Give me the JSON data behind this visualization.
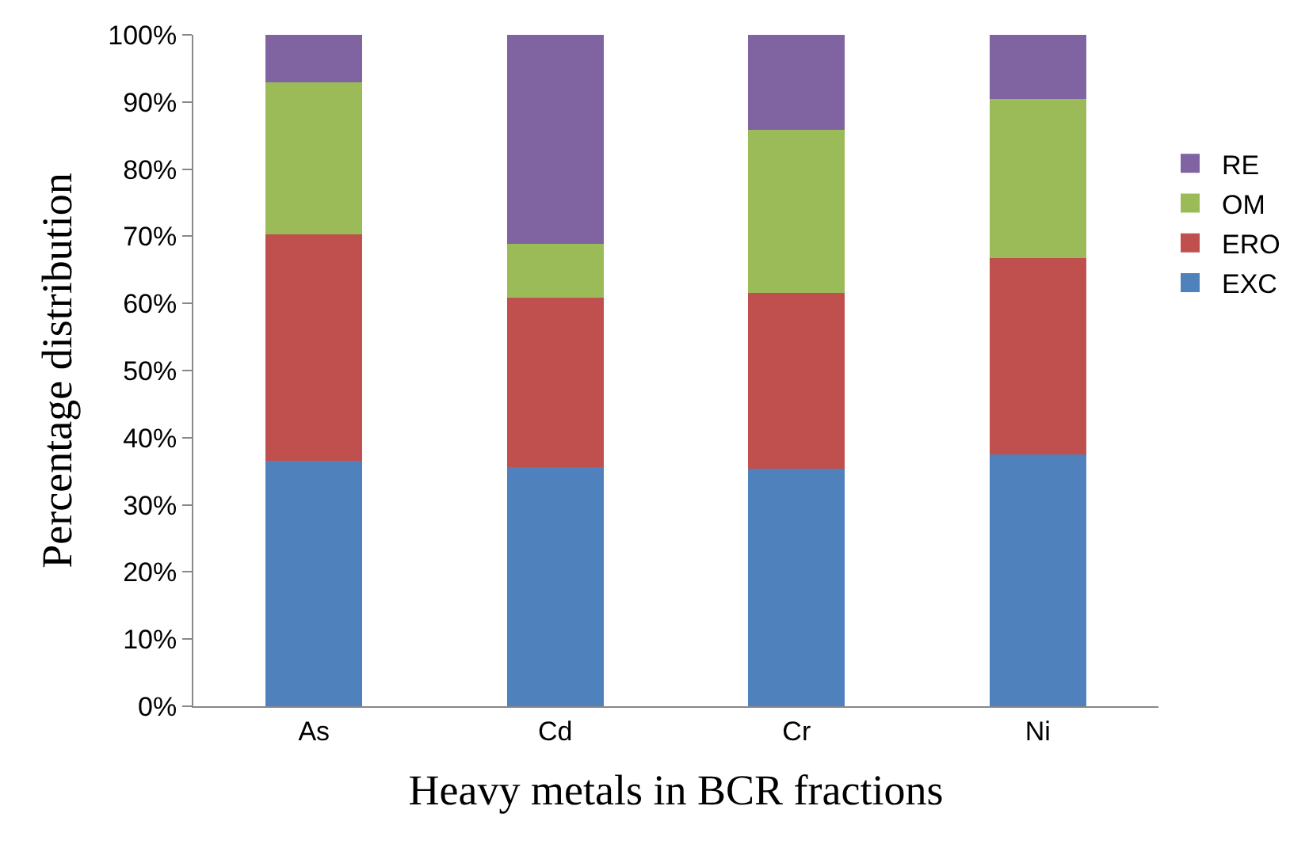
{
  "chart_data": {
    "type": "bar",
    "stacked": true,
    "xlabel": "Heavy metals in BCR fractions",
    "ylabel": "Percentage distribution",
    "categories": [
      "As",
      "Cd",
      "Cr",
      "Ni"
    ],
    "series": [
      {
        "name": "EXC",
        "color": "#4f81bd",
        "values": [
          36.6,
          35.6,
          35.4,
          37.5
        ]
      },
      {
        "name": "ERO",
        "color": "#c0504d",
        "values": [
          33.7,
          25.2,
          26.2,
          29.2
        ]
      },
      {
        "name": "OM",
        "color": "#9bbb59",
        "values": [
          22.6,
          8.1,
          24.2,
          23.8
        ]
      },
      {
        "name": "RE",
        "color": "#8064a2",
        "values": [
          7.1,
          31.1,
          14.2,
          9.5
        ]
      }
    ],
    "ylim": [
      0,
      100
    ],
    "yticks": [
      {
        "value": 0,
        "label": "0%"
      },
      {
        "value": 10,
        "label": "10%"
      },
      {
        "value": 20,
        "label": "20%"
      },
      {
        "value": 30,
        "label": "30%"
      },
      {
        "value": 40,
        "label": "40%"
      },
      {
        "value": 50,
        "label": "50%"
      },
      {
        "value": 60,
        "label": "60%"
      },
      {
        "value": 70,
        "label": "70%"
      },
      {
        "value": 80,
        "label": "80%"
      },
      {
        "value": 90,
        "label": "90%"
      },
      {
        "value": 100,
        "label": "100%"
      }
    ],
    "grid": false,
    "legend": "right"
  }
}
